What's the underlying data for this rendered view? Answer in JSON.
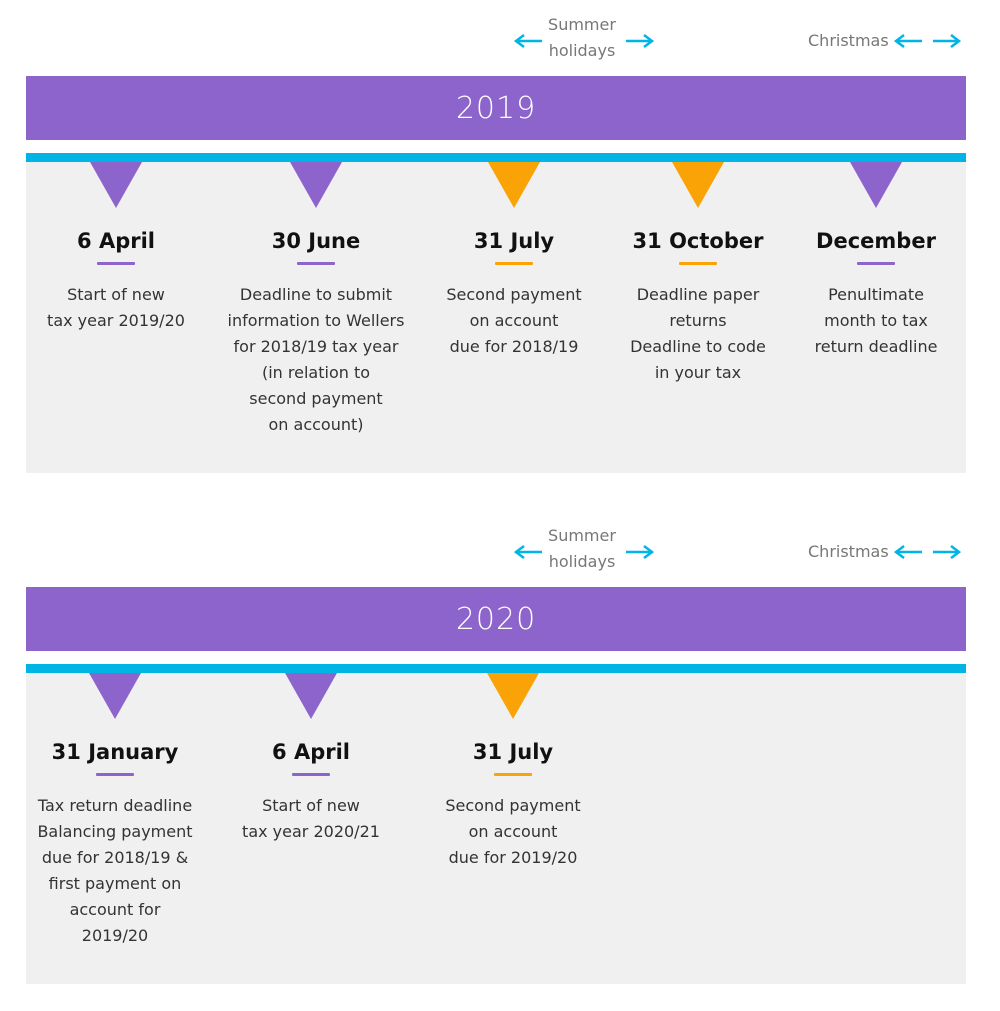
{
  "colors": {
    "purple": "#8d64cc",
    "orange": "#f9a306",
    "blue": "#00b4e6",
    "panel": "#f0f0f0"
  },
  "sections": [
    {
      "year": "2019",
      "summer_label": "Summer\nholidays",
      "christmas_label": "Christmas",
      "events": [
        {
          "date": "6 April",
          "marker": "purple",
          "description": "Start of new\ntax year 2019/20"
        },
        {
          "date": "30 June",
          "marker": "purple",
          "description": "Deadline to submit\ninformation to Wellers\nfor 2018/19 tax year\n(in relation to\nsecond payment\non account)"
        },
        {
          "date": "31 July",
          "marker": "orange",
          "description": "Second payment\non account\ndue for 2018/19"
        },
        {
          "date": "31 October",
          "marker": "orange",
          "description": "Deadline paper\nreturns\nDeadline to code\nin your tax"
        },
        {
          "date": "December",
          "marker": "purple",
          "description": "Penultimate\nmonth to tax\nreturn deadline"
        }
      ]
    },
    {
      "year": "2020",
      "summer_label": "Summer\nholidays",
      "christmas_label": "Christmas",
      "events": [
        {
          "date": "31 January",
          "marker": "purple",
          "description": "Tax return deadline\nBalancing payment\ndue for 2018/19 &\nfirst payment on\naccount for\n2019/20"
        },
        {
          "date": "6 April",
          "marker": "purple",
          "description": "Start of new\ntax year 2020/21"
        },
        {
          "date": "31 July",
          "marker": "orange",
          "description": "Second payment\non account\ndue for 2019/20"
        }
      ]
    }
  ]
}
